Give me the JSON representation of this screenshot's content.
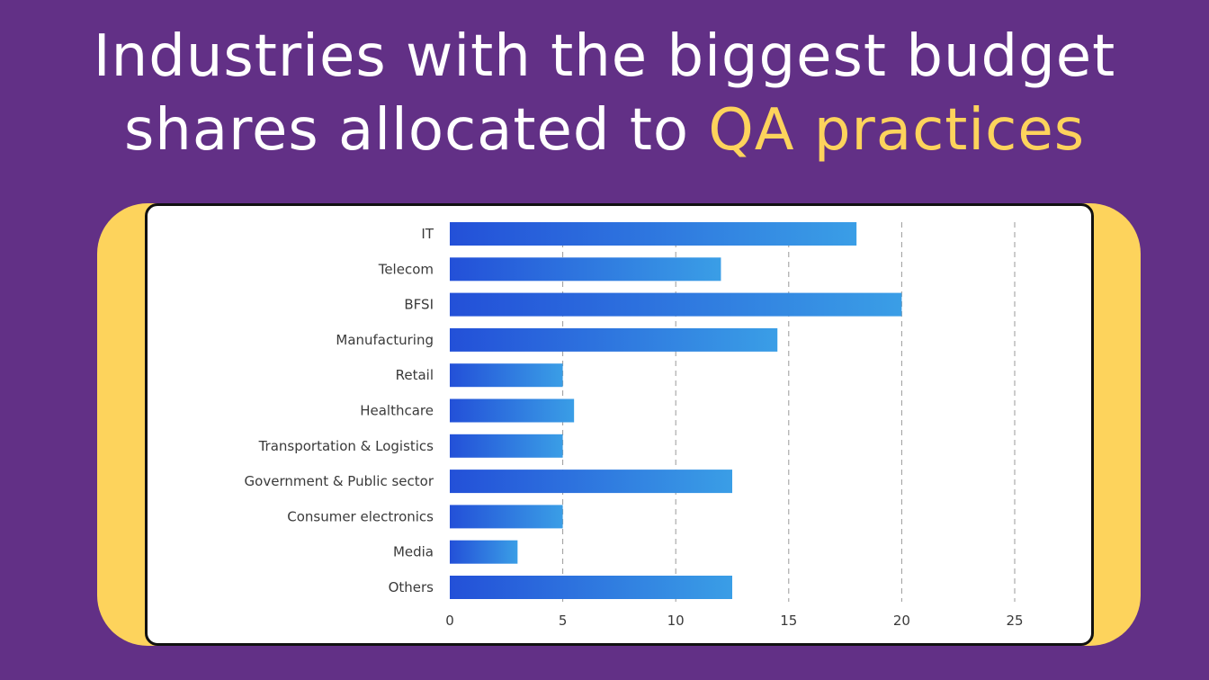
{
  "title": {
    "line1": "Industries with the biggest budget",
    "line2_prefix": "shares allocated to ",
    "line2_highlight": "QA practices"
  },
  "colors": {
    "background": "#623086",
    "highlight": "#fdd35c",
    "bar_start": "#2350d8",
    "bar_end": "#3a9ee6"
  },
  "chart_data": {
    "type": "bar",
    "orientation": "horizontal",
    "categories": [
      "IT",
      "Telecom",
      "BFSI",
      "Manufacturing",
      "Retail",
      "Healthcare",
      "Transportation & Logistics",
      "Government & Public sector",
      "Consumer electronics",
      "Media",
      "Others"
    ],
    "values": [
      18,
      12,
      20,
      14.5,
      5,
      5.5,
      5,
      12.5,
      5,
      3,
      12.5
    ],
    "xlim": [
      0,
      25
    ],
    "xticks": [
      0,
      5,
      10,
      15,
      20,
      25
    ],
    "grid": "vertical dashed"
  }
}
